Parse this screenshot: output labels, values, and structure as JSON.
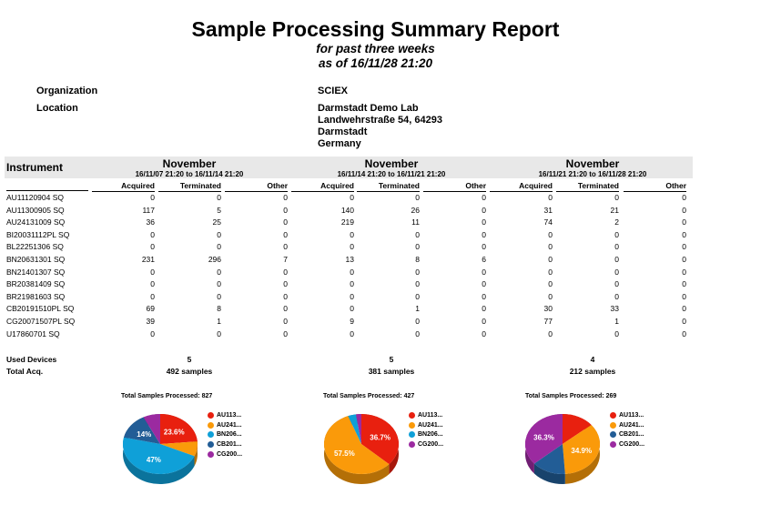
{
  "header": {
    "title": "Sample Processing Summary Report",
    "subtitle1": "for past three weeks",
    "subtitle2": "as of 16/11/28 21:20"
  },
  "info": {
    "org_label": "Organization",
    "org_value": "SCIEX",
    "loc_label": "Location",
    "loc_lines": [
      "Darmstadt Demo Lab",
      "Landwehrstraße 54, 64293",
      "Darmstadt",
      "Germany"
    ]
  },
  "table": {
    "instrument_header": "Instrument",
    "weeks": [
      {
        "month": "November",
        "range": "16/11/07 21:20 to 16/11/14 21:20",
        "used_devices": "5",
        "total_acq": "492 samples"
      },
      {
        "month": "November",
        "range": "16/11/14 21:20 to 16/11/21 21:20",
        "used_devices": "5",
        "total_acq": "381 samples"
      },
      {
        "month": "November",
        "range": "16/11/21 21:20 to 16/11/28 21:20",
        "used_devices": "4",
        "total_acq": "212 samples"
      }
    ],
    "columns": [
      "Acquired",
      "Terminated",
      "Other"
    ],
    "rows": [
      {
        "name": "AU11120904 SQ",
        "v": [
          "0",
          "0",
          "0",
          "0",
          "0",
          "0",
          "0",
          "0",
          "0"
        ]
      },
      {
        "name": "AU11300905 SQ",
        "v": [
          "117",
          "5",
          "0",
          "140",
          "26",
          "0",
          "31",
          "21",
          "0"
        ]
      },
      {
        "name": "AU24131009 SQ",
        "v": [
          "36",
          "25",
          "0",
          "219",
          "11",
          "0",
          "74",
          "2",
          "0"
        ]
      },
      {
        "name": "BI20031112PL SQ",
        "v": [
          "0",
          "0",
          "0",
          "0",
          "0",
          "0",
          "0",
          "0",
          "0"
        ]
      },
      {
        "name": "BL22251306 SQ",
        "v": [
          "0",
          "0",
          "0",
          "0",
          "0",
          "0",
          "0",
          "0",
          "0"
        ]
      },
      {
        "name": "BN20631301 SQ",
        "v": [
          "231",
          "296",
          "7",
          "13",
          "8",
          "6",
          "0",
          "0",
          "0"
        ]
      },
      {
        "name": "BN21401307 SQ",
        "v": [
          "0",
          "0",
          "0",
          "0",
          "0",
          "0",
          "0",
          "0",
          "0"
        ]
      },
      {
        "name": "BR20381409 SQ",
        "v": [
          "0",
          "0",
          "0",
          "0",
          "0",
          "0",
          "0",
          "0",
          "0"
        ]
      },
      {
        "name": "BR21981603 SQ",
        "v": [
          "0",
          "0",
          "0",
          "0",
          "0",
          "0",
          "0",
          "0",
          "0"
        ]
      },
      {
        "name": "CB20191510PL SQ",
        "v": [
          "69",
          "8",
          "0",
          "0",
          "1",
          "0",
          "30",
          "33",
          "0"
        ]
      },
      {
        "name": "CG20071507PL SQ",
        "v": [
          "39",
          "1",
          "0",
          "9",
          "0",
          "0",
          "77",
          "1",
          "0"
        ]
      },
      {
        "name": "U17860701 SQ",
        "v": [
          "0",
          "0",
          "0",
          "0",
          "0",
          "0",
          "0",
          "0",
          "0"
        ]
      }
    ],
    "used_devices_label": "Used Devices",
    "total_acq_label": "Total Acq."
  },
  "chart_data": [
    {
      "type": "pie",
      "title": "Total Samples Processed: 827",
      "slices": [
        {
          "label": "AU113...",
          "value": 23.6,
          "color": "#e8200f",
          "shown": "23.6%"
        },
        {
          "label": "AU241...",
          "value": 8.0,
          "color": "#fa9a0a",
          "shown": ""
        },
        {
          "label": "BN206...",
          "value": 47,
          "color": "#0fa0d8",
          "shown": "47%"
        },
        {
          "label": "CB201...",
          "value": 14,
          "color": "#225d96",
          "shown": "14%"
        },
        {
          "label": "CG200...",
          "value": 7.4,
          "color": "#9b2aa0",
          "shown": ""
        }
      ]
    },
    {
      "type": "pie",
      "title": "Total Samples Processed: 427",
      "slices": [
        {
          "label": "AU113...",
          "value": 36.7,
          "color": "#e8200f",
          "shown": "36.7%"
        },
        {
          "label": "AU241...",
          "value": 57.5,
          "color": "#fa9a0a",
          "shown": "57.5%"
        },
        {
          "label": "BN206...",
          "value": 3.5,
          "color": "#0fa0d8",
          "shown": ""
        },
        {
          "label": "CG200...",
          "value": 2.3,
          "color": "#9b2aa0",
          "shown": ""
        }
      ]
    },
    {
      "type": "pie",
      "title": "Total Samples Processed: 269",
      "slices": [
        {
          "label": "AU113...",
          "value": 14.0,
          "color": "#e8200f",
          "shown": ""
        },
        {
          "label": "AU241...",
          "value": 34.9,
          "color": "#fa9a0a",
          "shown": "34.9%"
        },
        {
          "label": "CB201...",
          "value": 14.8,
          "color": "#225d96",
          "shown": ""
        },
        {
          "label": "CG200...",
          "value": 36.3,
          "color": "#9b2aa0",
          "shown": "36.3%"
        }
      ]
    }
  ]
}
